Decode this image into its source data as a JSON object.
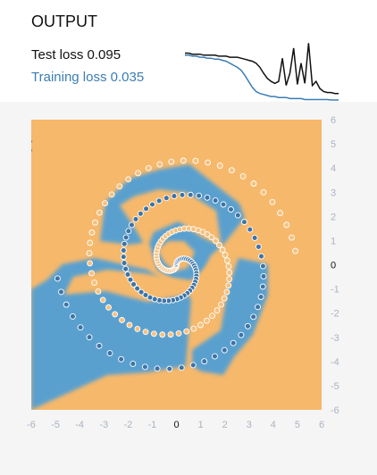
{
  "output": {
    "title": "OUTPUT",
    "test_loss_label": "Test loss",
    "test_loss_value": "0.095",
    "training_loss_label": "Training loss",
    "training_loss_value": "0.035"
  },
  "colors": {
    "positive": "#f6b86b",
    "negative": "#5aa0cf",
    "point_positive": "#f6c17f",
    "point_negative": "#3d74a6",
    "test_line": "#111111",
    "train_line": "#3b7db3",
    "tick_text": "#a7b4c2",
    "zero_tick": "#111111"
  },
  "chart_data": {
    "type": "heatmap",
    "title": "",
    "xlabel": "",
    "ylabel": "",
    "xlim": [
      -6,
      6
    ],
    "ylim": [
      -6,
      6
    ],
    "x_ticks": [
      "-6",
      "-5",
      "-4",
      "-3",
      "-2",
      "-1",
      "0",
      "1",
      "2",
      "3",
      "4",
      "5",
      "6"
    ],
    "y_ticks": [
      "6",
      "5",
      "4",
      "3",
      "2",
      "1",
      "0",
      "-1",
      "-2",
      "-3",
      "-4",
      "-5",
      "-6"
    ],
    "series": [
      {
        "class": "orange",
        "pattern": "spiral",
        "arms": 1,
        "angle_offset_rad": 3.1416,
        "r_max": 5.0,
        "points": 95
      },
      {
        "class": "blue",
        "pattern": "spiral",
        "arms": 1,
        "angle_offset_rad": 0,
        "r_max": 5.0,
        "points": 95
      }
    ]
  },
  "loss_chart": {
    "type": "line",
    "series": [
      {
        "name": "Test loss",
        "y": [
          0.5,
          0.5,
          0.49,
          0.49,
          0.49,
          0.48,
          0.48,
          0.48,
          0.48,
          0.47,
          0.47,
          0.47,
          0.46,
          0.46,
          0.46,
          0.45,
          0.44,
          0.43,
          0.42,
          0.4,
          0.36,
          0.3,
          0.25,
          0.22,
          0.2,
          0.22,
          0.45,
          0.18,
          0.3,
          0.55,
          0.19,
          0.4,
          0.2,
          0.6,
          0.18,
          0.22,
          0.15,
          0.12,
          0.11,
          0.11,
          0.1,
          0.1
        ]
      },
      {
        "name": "Training loss",
        "y": [
          0.48,
          0.48,
          0.47,
          0.47,
          0.46,
          0.46,
          0.45,
          0.45,
          0.44,
          0.44,
          0.43,
          0.42,
          0.4,
          0.38,
          0.36,
          0.33,
          0.28,
          0.22,
          0.16,
          0.12,
          0.1,
          0.09,
          0.08,
          0.07,
          0.07,
          0.06,
          0.06,
          0.06,
          0.05,
          0.05,
          0.05,
          0.05,
          0.04,
          0.04,
          0.04,
          0.04,
          0.04,
          0.04,
          0.04,
          0.035,
          0.035,
          0.035
        ]
      }
    ]
  }
}
